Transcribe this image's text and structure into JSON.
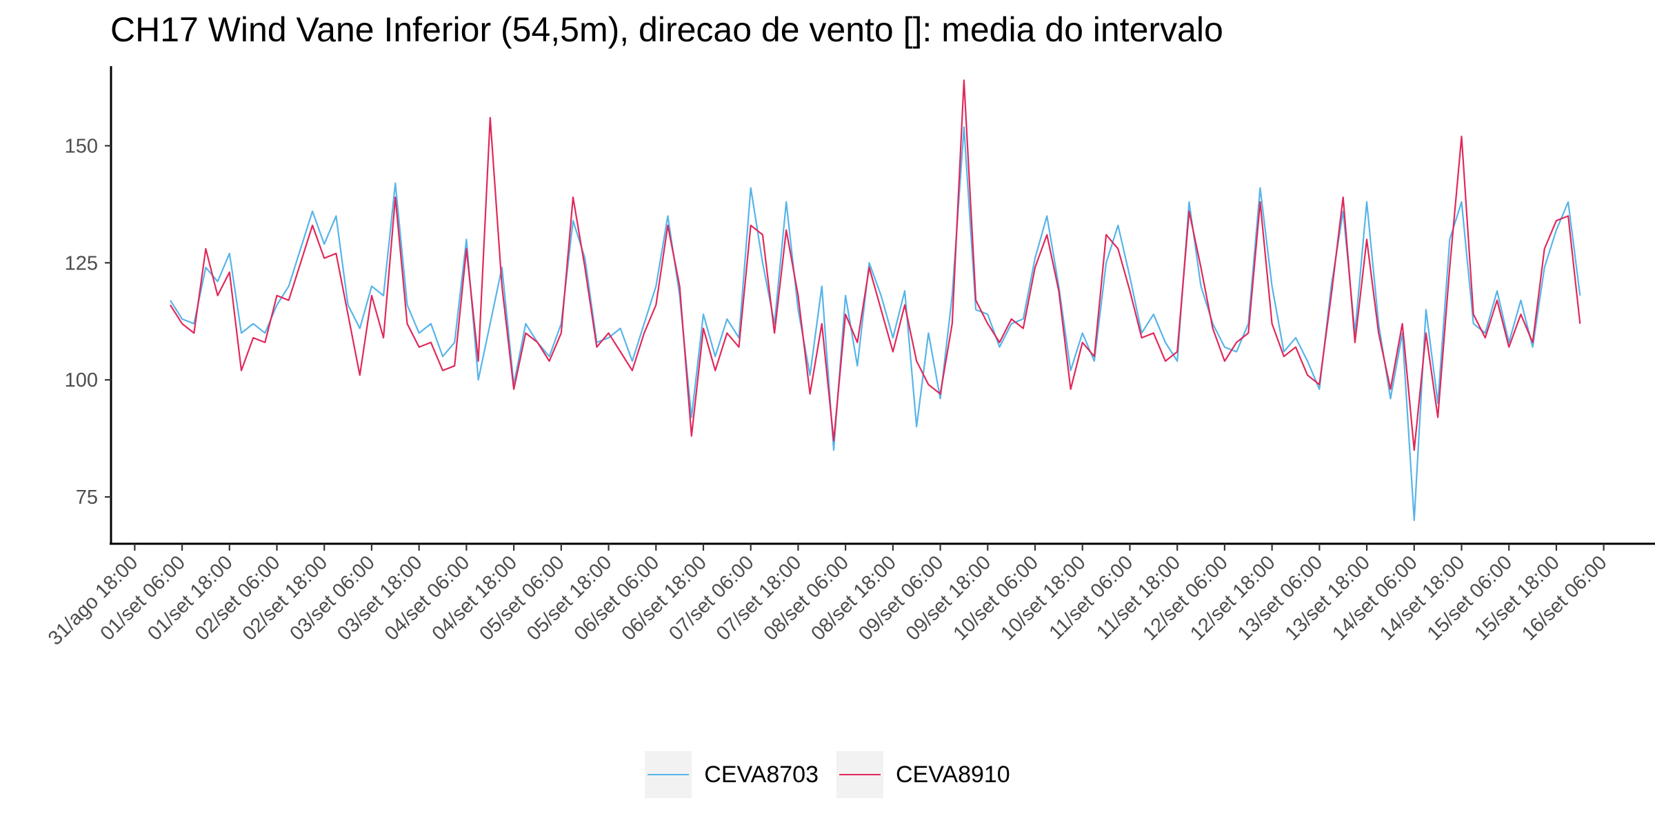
{
  "chart_data": {
    "type": "line",
    "title": "CH17 Wind Vane Inferior (54,5m), direcao de vento []: media do intervalo",
    "xlabel": "",
    "ylabel": "",
    "ylim": [
      65,
      167
    ],
    "yticks": [
      75,
      100,
      125,
      150
    ],
    "xlim": [
      "2024-08-31T12:00",
      "2024-09-16T12:00"
    ],
    "xticks": [
      {
        "t": "2024-08-31T18:00",
        "label": "31/ago 18:00"
      },
      {
        "t": "2024-09-01T06:00",
        "label": "01/set 06:00"
      },
      {
        "t": "2024-09-01T18:00",
        "label": "01/set 18:00"
      },
      {
        "t": "2024-09-02T06:00",
        "label": "02/set 06:00"
      },
      {
        "t": "2024-09-02T18:00",
        "label": "02/set 18:00"
      },
      {
        "t": "2024-09-03T06:00",
        "label": "03/set 06:00"
      },
      {
        "t": "2024-09-03T18:00",
        "label": "03/set 18:00"
      },
      {
        "t": "2024-09-04T06:00",
        "label": "04/set 06:00"
      },
      {
        "t": "2024-09-04T18:00",
        "label": "04/set 18:00"
      },
      {
        "t": "2024-09-05T06:00",
        "label": "05/set 06:00"
      },
      {
        "t": "2024-09-05T18:00",
        "label": "05/set 18:00"
      },
      {
        "t": "2024-09-06T06:00",
        "label": "06/set 06:00"
      },
      {
        "t": "2024-09-06T18:00",
        "label": "06/set 18:00"
      },
      {
        "t": "2024-09-07T06:00",
        "label": "07/set 06:00"
      },
      {
        "t": "2024-09-07T18:00",
        "label": "07/set 18:00"
      },
      {
        "t": "2024-09-08T06:00",
        "label": "08/set 06:00"
      },
      {
        "t": "2024-09-08T18:00",
        "label": "08/set 18:00"
      },
      {
        "t": "2024-09-09T06:00",
        "label": "09/set 06:00"
      },
      {
        "t": "2024-09-09T18:00",
        "label": "09/set 18:00"
      },
      {
        "t": "2024-09-10T06:00",
        "label": "10/set 06:00"
      },
      {
        "t": "2024-09-10T18:00",
        "label": "10/set 18:00"
      },
      {
        "t": "2024-09-11T06:00",
        "label": "11/set 06:00"
      },
      {
        "t": "2024-09-11T18:00",
        "label": "11/set 18:00"
      },
      {
        "t": "2024-09-12T06:00",
        "label": "12/set 06:00"
      },
      {
        "t": "2024-09-12T18:00",
        "label": "12/set 18:00"
      },
      {
        "t": "2024-09-13T06:00",
        "label": "13/set 06:00"
      },
      {
        "t": "2024-09-13T18:00",
        "label": "13/set 18:00"
      },
      {
        "t": "2024-09-14T06:00",
        "label": "14/set 06:00"
      },
      {
        "t": "2024-09-14T18:00",
        "label": "14/set 18:00"
      },
      {
        "t": "2024-09-15T06:00",
        "label": "15/set 06:00"
      },
      {
        "t": "2024-09-15T18:00",
        "label": "15/set 18:00"
      },
      {
        "t": "2024-09-16T06:00",
        "label": "16/set 06:00"
      }
    ],
    "grid": false,
    "legend_position": "bottom",
    "series": [
      {
        "name": "CEVA8703",
        "color": "#56b4e9",
        "x": [
          "2024-09-01T03:00",
          "2024-09-01T06:00",
          "2024-09-01T09:00",
          "2024-09-01T12:00",
          "2024-09-01T15:00",
          "2024-09-01T18:00",
          "2024-09-01T21:00",
          "2024-09-02T00:00",
          "2024-09-02T03:00",
          "2024-09-02T06:00",
          "2024-09-02T09:00",
          "2024-09-02T12:00",
          "2024-09-02T15:00",
          "2024-09-02T18:00",
          "2024-09-02T21:00",
          "2024-09-03T00:00",
          "2024-09-03T03:00",
          "2024-09-03T06:00",
          "2024-09-03T09:00",
          "2024-09-03T12:00",
          "2024-09-03T15:00",
          "2024-09-03T18:00",
          "2024-09-03T21:00",
          "2024-09-04T00:00",
          "2024-09-04T03:00",
          "2024-09-04T06:00",
          "2024-09-04T09:00",
          "2024-09-04T12:00",
          "2024-09-04T15:00",
          "2024-09-04T18:00",
          "2024-09-04T21:00",
          "2024-09-05T00:00",
          "2024-09-05T03:00",
          "2024-09-05T06:00",
          "2024-09-05T09:00",
          "2024-09-05T12:00",
          "2024-09-05T15:00",
          "2024-09-05T18:00",
          "2024-09-05T21:00",
          "2024-09-06T00:00",
          "2024-09-06T03:00",
          "2024-09-06T06:00",
          "2024-09-06T09:00",
          "2024-09-06T12:00",
          "2024-09-06T15:00",
          "2024-09-06T18:00",
          "2024-09-06T21:00",
          "2024-09-07T00:00",
          "2024-09-07T03:00",
          "2024-09-07T06:00",
          "2024-09-07T09:00",
          "2024-09-07T12:00",
          "2024-09-07T15:00",
          "2024-09-07T18:00",
          "2024-09-07T21:00",
          "2024-09-08T00:00",
          "2024-09-08T03:00",
          "2024-09-08T06:00",
          "2024-09-08T09:00",
          "2024-09-08T12:00",
          "2024-09-08T15:00",
          "2024-09-08T18:00",
          "2024-09-08T21:00",
          "2024-09-09T00:00",
          "2024-09-09T03:00",
          "2024-09-09T06:00",
          "2024-09-09T09:00",
          "2024-09-09T12:00",
          "2024-09-09T15:00",
          "2024-09-09T18:00",
          "2024-09-09T21:00",
          "2024-09-10T00:00",
          "2024-09-10T03:00",
          "2024-09-10T06:00",
          "2024-09-10T09:00",
          "2024-09-10T12:00",
          "2024-09-10T15:00",
          "2024-09-10T18:00",
          "2024-09-10T21:00",
          "2024-09-11T00:00",
          "2024-09-11T03:00",
          "2024-09-11T06:00",
          "2024-09-11T09:00",
          "2024-09-11T12:00",
          "2024-09-11T15:00",
          "2024-09-11T18:00",
          "2024-09-11T21:00",
          "2024-09-12T00:00",
          "2024-09-12T03:00",
          "2024-09-12T06:00",
          "2024-09-12T09:00",
          "2024-09-12T12:00",
          "2024-09-12T15:00",
          "2024-09-12T18:00",
          "2024-09-12T21:00",
          "2024-09-13T00:00",
          "2024-09-13T03:00",
          "2024-09-13T06:00",
          "2024-09-13T09:00",
          "2024-09-13T12:00",
          "2024-09-13T15:00",
          "2024-09-13T18:00",
          "2024-09-13T21:00",
          "2024-09-14T00:00",
          "2024-09-14T03:00",
          "2024-09-14T06:00",
          "2024-09-14T09:00",
          "2024-09-14T12:00",
          "2024-09-14T15:00",
          "2024-09-14T18:00",
          "2024-09-14T21:00",
          "2024-09-15T00:00",
          "2024-09-15T03:00",
          "2024-09-15T06:00",
          "2024-09-15T09:00",
          "2024-09-15T12:00",
          "2024-09-15T15:00",
          "2024-09-15T18:00",
          "2024-09-15T21:00",
          "2024-09-16T00:00"
        ],
        "y": [
          117,
          113,
          112,
          124,
          121,
          127,
          110,
          112,
          110,
          116,
          120,
          128,
          136,
          129,
          135,
          116,
          111,
          120,
          118,
          142,
          116,
          110,
          112,
          105,
          108,
          130,
          100,
          112,
          124,
          99,
          112,
          108,
          105,
          112,
          134,
          126,
          108,
          109,
          111,
          104,
          112,
          120,
          135,
          118,
          92,
          114,
          105,
          113,
          109,
          141,
          125,
          112,
          138,
          115,
          101,
          120,
          85,
          118,
          103,
          125,
          118,
          109,
          119,
          90,
          110,
          96,
          118,
          154,
          115,
          114,
          107,
          112,
          113,
          126,
          135,
          120,
          102,
          110,
          104,
          125,
          133,
          122,
          110,
          114,
          108,
          104,
          138,
          120,
          112,
          107,
          106,
          112,
          141,
          120,
          106,
          109,
          104,
          98,
          120,
          136,
          110,
          138,
          112,
          96,
          110,
          70,
          115,
          95,
          130,
          138,
          112,
          110,
          119,
          108,
          117,
          107,
          124,
          132,
          138,
          118
        ]
      },
      {
        "name": "CEVA8910",
        "color": "#e0285a",
        "x": [
          "2024-09-01T03:00",
          "2024-09-01T06:00",
          "2024-09-01T09:00",
          "2024-09-01T12:00",
          "2024-09-01T15:00",
          "2024-09-01T18:00",
          "2024-09-01T21:00",
          "2024-09-02T00:00",
          "2024-09-02T03:00",
          "2024-09-02T06:00",
          "2024-09-02T09:00",
          "2024-09-02T12:00",
          "2024-09-02T15:00",
          "2024-09-02T18:00",
          "2024-09-02T21:00",
          "2024-09-03T00:00",
          "2024-09-03T03:00",
          "2024-09-03T06:00",
          "2024-09-03T09:00",
          "2024-09-03T12:00",
          "2024-09-03T15:00",
          "2024-09-03T18:00",
          "2024-09-03T21:00",
          "2024-09-04T00:00",
          "2024-09-04T03:00",
          "2024-09-04T06:00",
          "2024-09-04T09:00",
          "2024-09-04T12:00",
          "2024-09-04T15:00",
          "2024-09-04T18:00",
          "2024-09-04T21:00",
          "2024-09-05T00:00",
          "2024-09-05T03:00",
          "2024-09-05T06:00",
          "2024-09-05T09:00",
          "2024-09-05T12:00",
          "2024-09-05T15:00",
          "2024-09-05T18:00",
          "2024-09-05T21:00",
          "2024-09-06T00:00",
          "2024-09-06T03:00",
          "2024-09-06T06:00",
          "2024-09-06T09:00",
          "2024-09-06T12:00",
          "2024-09-06T15:00",
          "2024-09-06T18:00",
          "2024-09-06T21:00",
          "2024-09-07T00:00",
          "2024-09-07T03:00",
          "2024-09-07T06:00",
          "2024-09-07T09:00",
          "2024-09-07T12:00",
          "2024-09-07T15:00",
          "2024-09-07T18:00",
          "2024-09-07T21:00",
          "2024-09-08T00:00",
          "2024-09-08T03:00",
          "2024-09-08T06:00",
          "2024-09-08T09:00",
          "2024-09-08T12:00",
          "2024-09-08T15:00",
          "2024-09-08T18:00",
          "2024-09-08T21:00",
          "2024-09-09T00:00",
          "2024-09-09T03:00",
          "2024-09-09T06:00",
          "2024-09-09T09:00",
          "2024-09-09T12:00",
          "2024-09-09T15:00",
          "2024-09-09T18:00",
          "2024-09-09T21:00",
          "2024-09-10T00:00",
          "2024-09-10T03:00",
          "2024-09-10T06:00",
          "2024-09-10T09:00",
          "2024-09-10T12:00",
          "2024-09-10T15:00",
          "2024-09-10T18:00",
          "2024-09-10T21:00",
          "2024-09-11T00:00",
          "2024-09-11T03:00",
          "2024-09-11T06:00",
          "2024-09-11T09:00",
          "2024-09-11T12:00",
          "2024-09-11T15:00",
          "2024-09-11T18:00",
          "2024-09-11T21:00",
          "2024-09-12T00:00",
          "2024-09-12T03:00",
          "2024-09-12T06:00",
          "2024-09-12T09:00",
          "2024-09-12T12:00",
          "2024-09-12T15:00",
          "2024-09-12T18:00",
          "2024-09-12T21:00",
          "2024-09-13T00:00",
          "2024-09-13T03:00",
          "2024-09-13T06:00",
          "2024-09-13T09:00",
          "2024-09-13T12:00",
          "2024-09-13T15:00",
          "2024-09-13T18:00",
          "2024-09-13T21:00",
          "2024-09-14T00:00",
          "2024-09-14T03:00",
          "2024-09-14T06:00",
          "2024-09-14T09:00",
          "2024-09-14T12:00",
          "2024-09-14T15:00",
          "2024-09-14T18:00",
          "2024-09-14T21:00",
          "2024-09-15T00:00",
          "2024-09-15T03:00",
          "2024-09-15T06:00",
          "2024-09-15T09:00",
          "2024-09-15T12:00",
          "2024-09-15T15:00",
          "2024-09-15T18:00",
          "2024-09-15T21:00",
          "2024-09-16T00:00"
        ],
        "y": [
          116,
          112,
          110,
          128,
          118,
          123,
          102,
          109,
          108,
          118,
          117,
          125,
          133,
          126,
          127,
          114,
          101,
          118,
          109,
          139,
          112,
          107,
          108,
          102,
          103,
          128,
          104,
          156,
          120,
          98,
          110,
          108,
          104,
          110,
          139,
          124,
          107,
          110,
          106,
          102,
          110,
          116,
          133,
          120,
          88,
          111,
          102,
          110,
          107,
          133,
          131,
          110,
          132,
          118,
          97,
          112,
          87,
          114,
          108,
          124,
          115,
          106,
          116,
          104,
          99,
          97,
          112,
          164,
          117,
          112,
          108,
          113,
          111,
          124,
          131,
          119,
          98,
          108,
          105,
          131,
          128,
          119,
          109,
          110,
          104,
          106,
          136,
          124,
          111,
          104,
          108,
          110,
          138,
          112,
          105,
          107,
          101,
          99,
          118,
          139,
          108,
          130,
          110,
          98,
          112,
          85,
          110,
          92,
          124,
          152,
          114,
          109,
          117,
          107,
          114,
          108,
          128,
          134,
          135,
          112
        ]
      }
    ]
  }
}
